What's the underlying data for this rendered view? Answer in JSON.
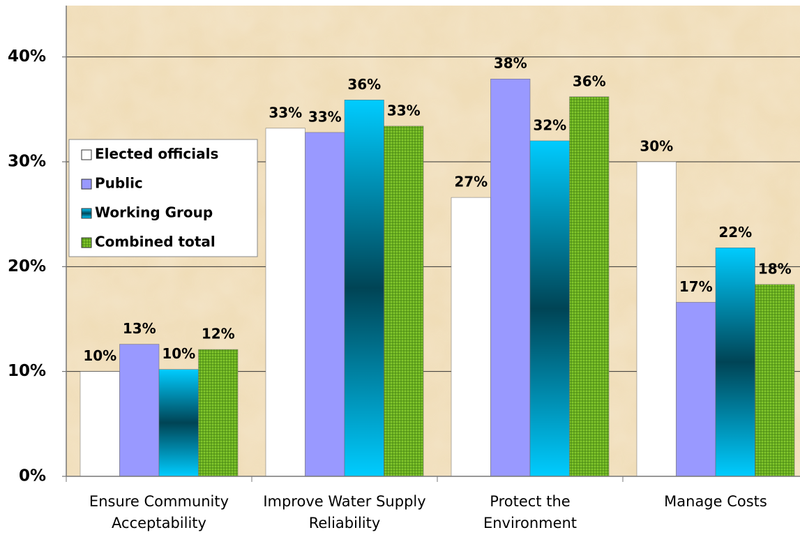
{
  "chart_data": {
    "type": "bar",
    "categories": [
      "Ensure Community\nAcceptability",
      "Improve Water Supply\nReliability",
      "Protect the\nEnvironment",
      "Manage Costs"
    ],
    "series": [
      {
        "name": "Elected officials",
        "color": "#ffffff",
        "pattern": "solid",
        "values": [
          10,
          33.2,
          26.6,
          30
        ],
        "value_labels": [
          "10%",
          "33%",
          "27%",
          "30%"
        ]
      },
      {
        "name": "Public",
        "color": "#9999ff",
        "pattern": "solid",
        "values": [
          12.6,
          32.8,
          37.9,
          16.6
        ],
        "value_labels": [
          "13%",
          "33%",
          "38%",
          "17%"
        ]
      },
      {
        "name": "Working Group",
        "color": "#00ccff",
        "pattern": "gradient",
        "values": [
          10.2,
          35.9,
          32,
          21.8
        ],
        "value_labels": [
          "10%",
          "36%",
          "32%",
          "22%"
        ]
      },
      {
        "name": "Combined total",
        "color": "#66aa22",
        "pattern": "dots",
        "values": [
          12.1,
          33.4,
          36.2,
          18.3
        ],
        "value_labels": [
          "12%",
          "33%",
          "36%",
          "18%"
        ]
      }
    ],
    "ylim": [
      0,
      44.9
    ],
    "yticks": [
      {
        "value": 0,
        "label": "0%"
      },
      {
        "value": 10,
        "label": "10%"
      },
      {
        "value": 20,
        "label": "20%"
      },
      {
        "value": 30,
        "label": "30%"
      },
      {
        "value": 40,
        "label": "40%"
      }
    ],
    "grid": true,
    "legend": "left"
  }
}
